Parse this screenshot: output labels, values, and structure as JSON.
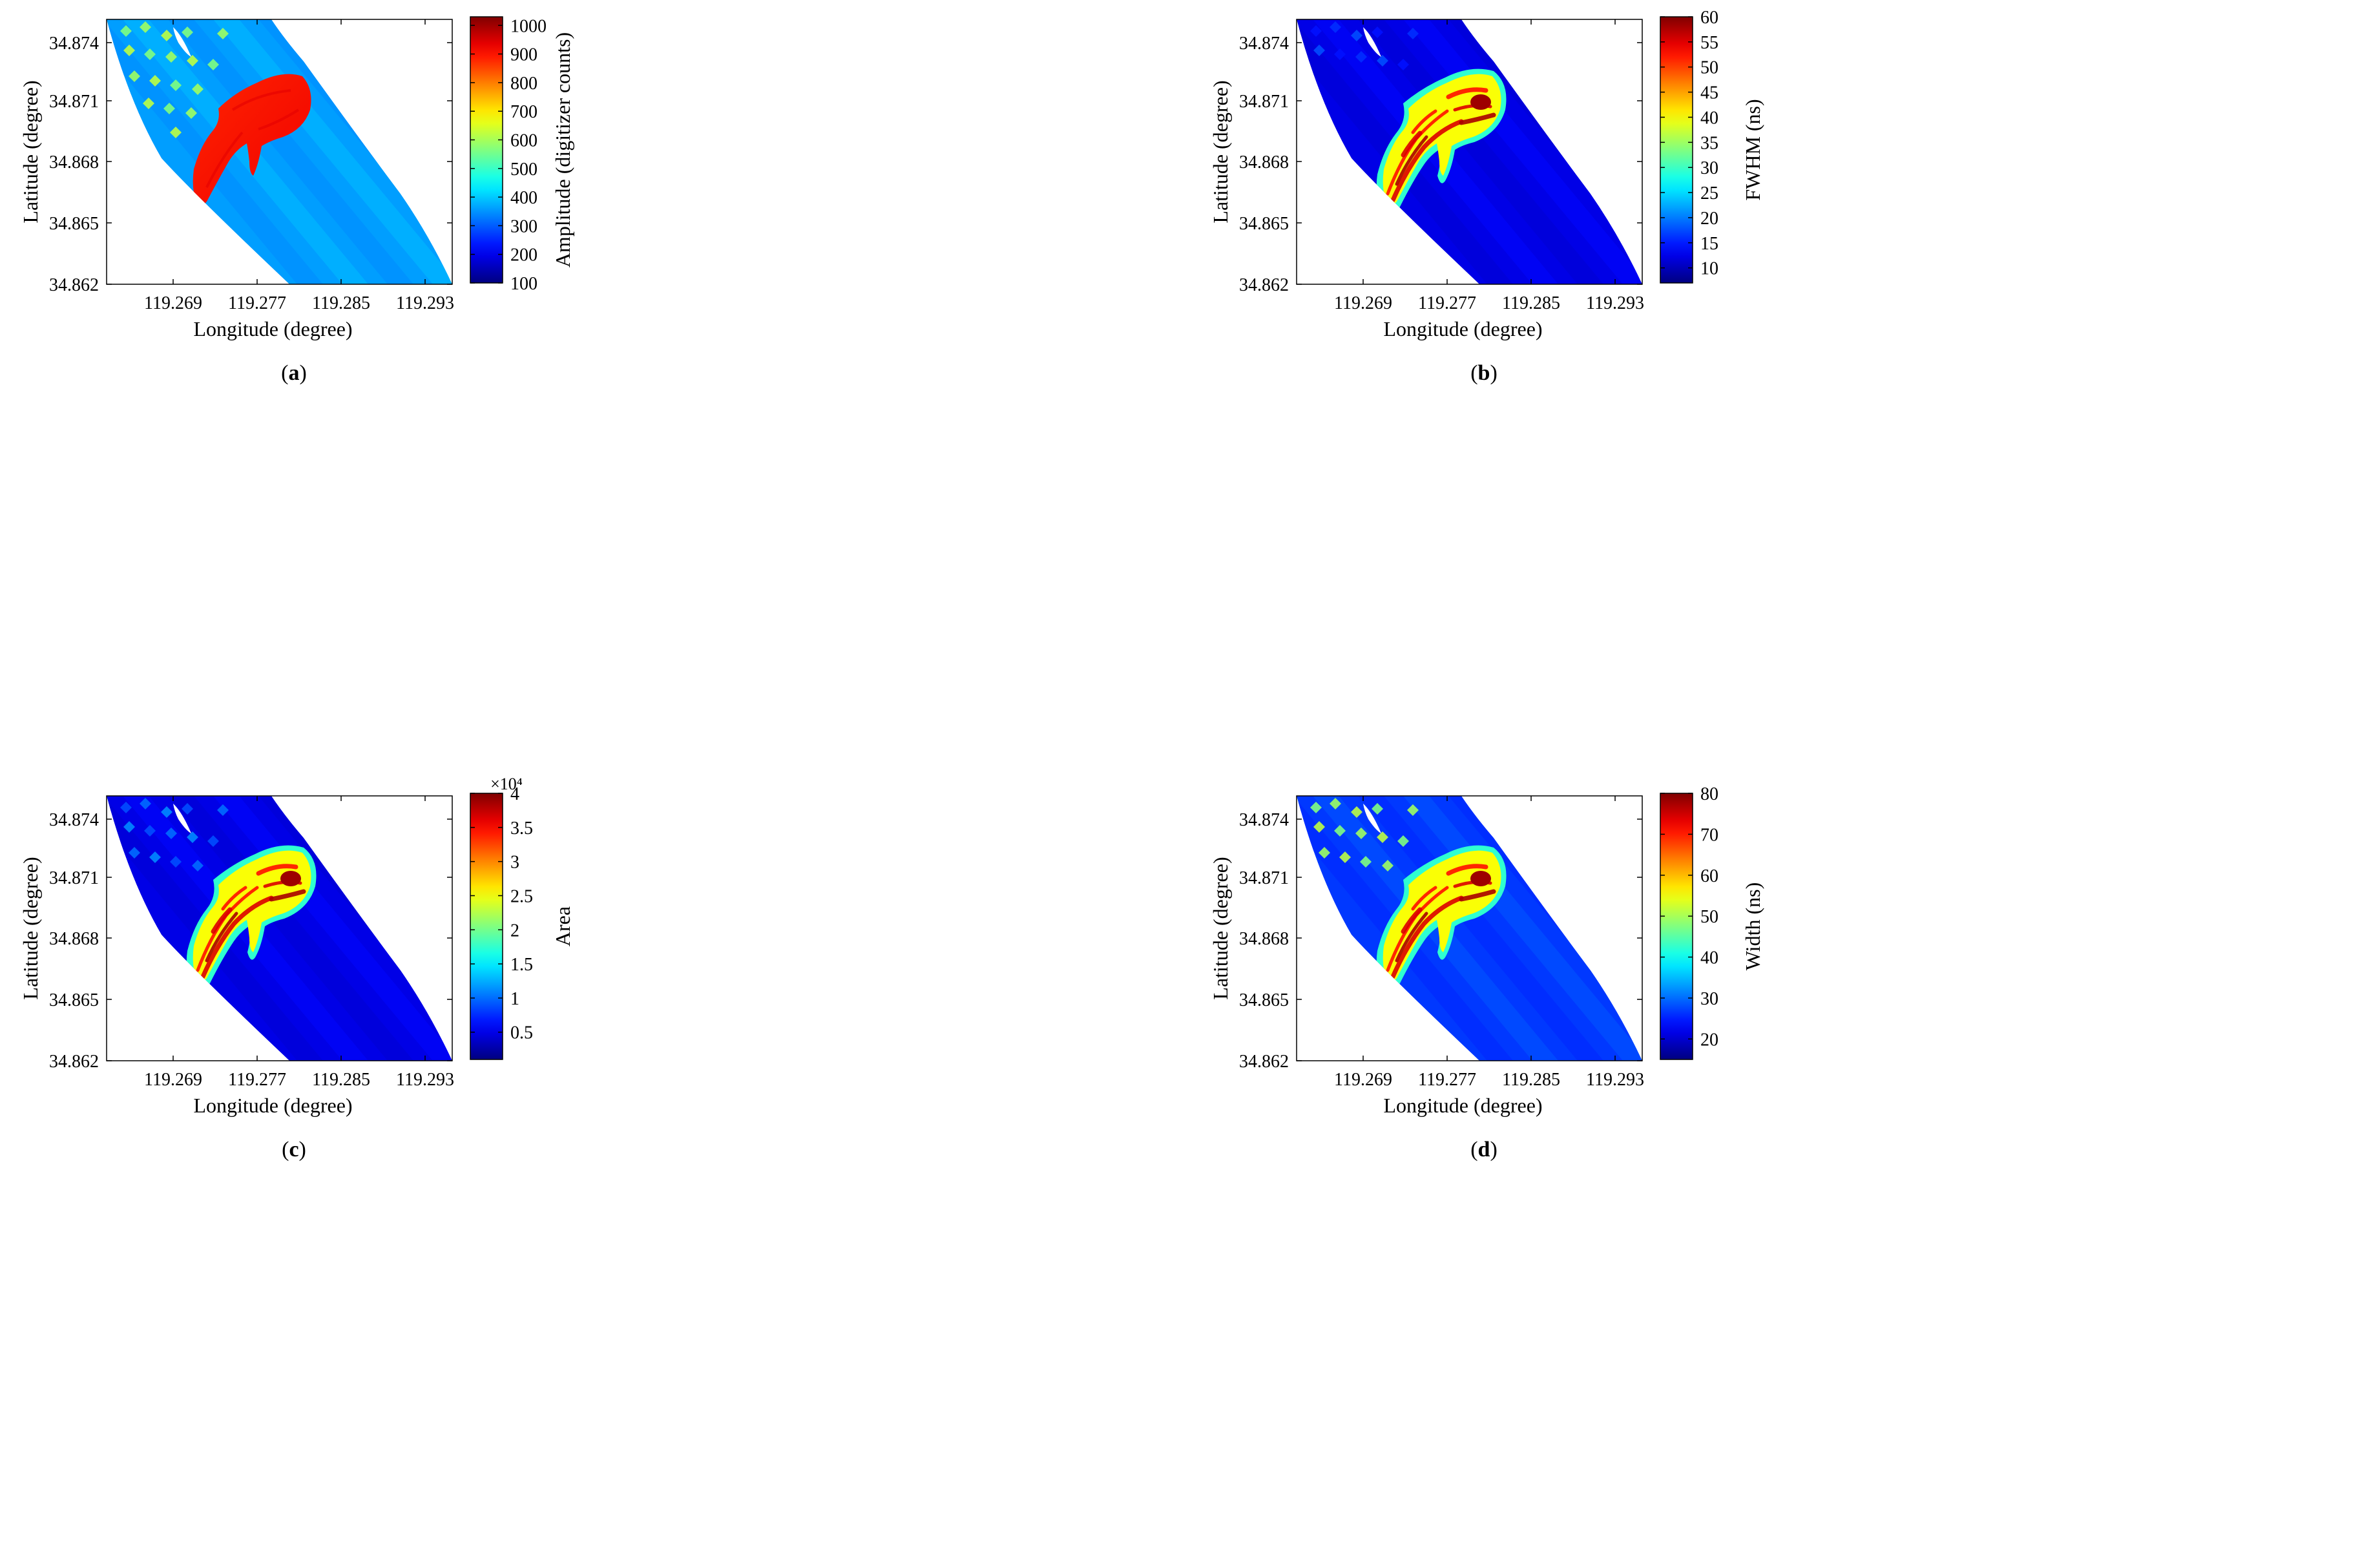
{
  "chart_data": [
    {
      "type": "heatmap",
      "panel_label": "(a)",
      "label_letter": "a",
      "xlabel": "Longitude (degree)",
      "ylabel": "Latitude (degree)",
      "xticks": [
        "119.269",
        "119.277",
        "119.285",
        "119.293"
      ],
      "yticks": [
        "34.874",
        "34.871",
        "34.868",
        "34.865",
        "34.862"
      ],
      "xlim": [
        119.263,
        119.296
      ],
      "ylim": [
        34.862,
        34.875
      ],
      "colorbar": {
        "label": "Amplitude (digitizer counts)",
        "ticks": [
          "1000",
          "900",
          "800",
          "700",
          "600",
          "500",
          "400",
          "300",
          "200",
          "100"
        ],
        "exponent": "",
        "range": [
          100,
          1030
        ]
      },
      "field_level": 0.28,
      "plume_level": 0.84,
      "plume_texture": "uniform",
      "grid_level": 0.5,
      "grid_count": 18
    },
    {
      "type": "heatmap",
      "panel_label": "(b)",
      "label_letter": "b",
      "xlabel": "Longitude (degree)",
      "ylabel": "Latitude (degree)",
      "xticks": [
        "119.269",
        "119.277",
        "119.285",
        "119.293"
      ],
      "yticks": [
        "34.874",
        "34.871",
        "34.868",
        "34.865",
        "34.862"
      ],
      "xlim": [
        119.263,
        119.296
      ],
      "ylim": [
        34.862,
        34.875
      ],
      "colorbar": {
        "label": "FWHM (ns)",
        "ticks": [
          "60",
          "55",
          "50",
          "45",
          "40",
          "35",
          "30",
          "25",
          "20",
          "15",
          "10"
        ],
        "exponent": "",
        "range": [
          7,
          60
        ]
      },
      "field_level": 0.1,
      "plume_level": 0.32,
      "plume_texture": "streaky",
      "grid_level": 0.14,
      "grid_count": 10
    },
    {
      "type": "heatmap",
      "panel_label": "(c)",
      "label_letter": "c",
      "xlabel": "Longitude (degree)",
      "ylabel": "Latitude (degree)",
      "xticks": [
        "119.269",
        "119.277",
        "119.285",
        "119.293"
      ],
      "yticks": [
        "34.874",
        "34.871",
        "34.868",
        "34.865",
        "34.862"
      ],
      "xlim": [
        119.263,
        119.296
      ],
      "ylim": [
        34.862,
        34.875
      ],
      "colorbar": {
        "label": "Area",
        "ticks": [
          "4",
          "3.5",
          "3",
          "2.5",
          "2",
          "1.5",
          "1",
          "0.5"
        ],
        "exponent": "×10⁴",
        "range": [
          0.1,
          4
        ]
      },
      "field_level": 0.1,
      "plume_level": 0.38,
      "plume_texture": "streaky",
      "grid_level": 0.2,
      "grid_count": 14
    },
    {
      "type": "heatmap",
      "panel_label": "(d)",
      "label_letter": "d",
      "xlabel": "Longitude (degree)",
      "ylabel": "Latitude (degree)",
      "xticks": [
        "119.269",
        "119.277",
        "119.285",
        "119.293"
      ],
      "yticks": [
        "34.874",
        "34.871",
        "34.868",
        "34.865",
        "34.862"
      ],
      "xlim": [
        119.263,
        119.296
      ],
      "ylim": [
        34.862,
        34.875
      ],
      "colorbar": {
        "label": "Width (ns)",
        "ticks": [
          "80",
          "70",
          "60",
          "50",
          "40",
          "30",
          "20"
        ],
        "exponent": "",
        "range": [
          15,
          80
        ]
      },
      "field_level": 0.18,
      "plume_level": 0.38,
      "plume_texture": "streaky",
      "grid_level": 0.5,
      "grid_count": 14
    }
  ]
}
